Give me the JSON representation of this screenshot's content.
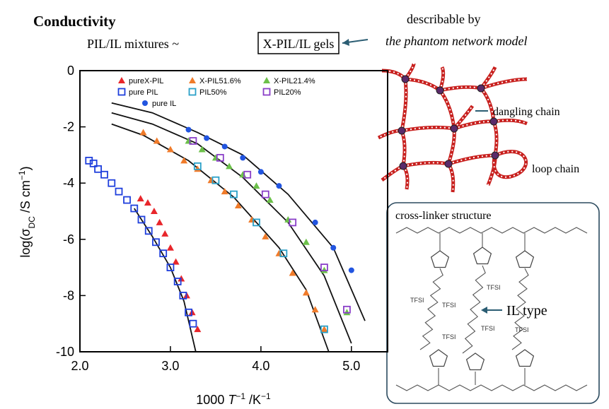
{
  "slide": {
    "title": "Conductivity",
    "mixtures": "PIL/IL mixtures ~",
    "gels": "X-PIL/IL gels",
    "describable": "describable by",
    "model": "the phantom network model"
  },
  "network": {
    "dangling": "dangling chain",
    "loop": "loop chain"
  },
  "structure": {
    "title": "cross-linker structure",
    "il_type": "IL type",
    "anions": [
      "TFSI",
      "TFSI",
      "TFSI",
      "TFSI",
      "TFSI",
      "TFSI"
    ]
  },
  "chart_data": {
    "type": "scatter",
    "x_label": [
      "1000 ",
      "T",
      "−1",
      " /K",
      "−1"
    ],
    "y_label": [
      "log(σ",
      "DC",
      " /S cm",
      "−1",
      ")"
    ],
    "xlim": [
      2.0,
      5.4
    ],
    "ylim": [
      -10,
      0
    ],
    "xticks": [
      {
        "value": 2,
        "label": "2.0"
      },
      {
        "value": 3,
        "label": "3.0"
      },
      {
        "value": 4,
        "label": "4.0"
      },
      {
        "value": 5,
        "label": "5.0"
      }
    ],
    "yticks": [
      0,
      -2,
      -4,
      -6,
      -8,
      -10
    ],
    "series": [
      {
        "name": "pureX-PIL",
        "color": "#e8262b",
        "marker": "triangle",
        "x": [
          2.67,
          2.75,
          2.82,
          2.88,
          2.94,
          3.0,
          3.06,
          3.12,
          3.18,
          3.24,
          3.3
        ],
        "values": [
          -4.55,
          -4.7,
          -5.0,
          -5.4,
          -5.8,
          -6.3,
          -6.8,
          -7.4,
          -8.0,
          -8.6,
          -9.2
        ]
      },
      {
        "name": "X-PIL51.6%",
        "color": "#f07b2a",
        "marker": "triangle",
        "x": [
          2.7,
          2.85,
          3.0,
          3.15,
          3.3,
          3.45,
          3.6,
          3.75,
          3.9,
          4.05,
          4.2,
          4.35,
          4.5,
          4.6,
          4.7
        ],
        "values": [
          -2.2,
          -2.5,
          -2.8,
          -3.2,
          -3.5,
          -3.9,
          -4.3,
          -4.8,
          -5.3,
          -5.9,
          -6.5,
          -7.2,
          -7.9,
          -8.5,
          -9.2
        ]
      },
      {
        "name": "X-PIL21.4%",
        "color": "#6cc04a",
        "marker": "triangle",
        "x": [
          3.2,
          3.35,
          3.5,
          3.65,
          3.8,
          3.95,
          4.1,
          4.3,
          4.5,
          4.7,
          4.95
        ],
        "values": [
          -2.5,
          -2.8,
          -3.1,
          -3.4,
          -3.7,
          -4.1,
          -4.6,
          -5.3,
          -6.1,
          -7.1,
          -8.6
        ]
      },
      {
        "name": "pure PIL",
        "color": "#1f3fdc",
        "marker": "square",
        "x": [
          2.1,
          2.15,
          2.2,
          2.27,
          2.35,
          2.43,
          2.52,
          2.6,
          2.68,
          2.76,
          2.84,
          2.92,
          3.0,
          3.08,
          3.14,
          3.2,
          3.25
        ],
        "values": [
          -3.2,
          -3.3,
          -3.5,
          -3.7,
          -4.0,
          -4.3,
          -4.6,
          -4.9,
          -5.3,
          -5.7,
          -6.1,
          -6.5,
          -7.0,
          -7.5,
          -8.0,
          -8.6,
          -9.0
        ]
      },
      {
        "name": "PIL50%",
        "color": "#2aa0c8",
        "marker": "square",
        "x": [
          3.3,
          3.5,
          3.7,
          3.95,
          4.25,
          4.7
        ],
        "values": [
          -3.4,
          -3.9,
          -4.4,
          -5.4,
          -6.5,
          -9.2
        ]
      },
      {
        "name": "PIL20%",
        "color": "#8a3fc8",
        "marker": "square",
        "x": [
          3.25,
          3.55,
          3.85,
          4.05,
          4.35,
          4.7,
          4.95
        ],
        "values": [
          -2.5,
          -3.1,
          -3.7,
          -4.4,
          -5.4,
          -7.0,
          -8.5
        ]
      },
      {
        "name": "pure IL",
        "color": "#2255e0",
        "marker": "circle",
        "x": [
          3.2,
          3.4,
          3.6,
          3.8,
          4.0,
          4.2,
          4.6,
          4.8,
          5.0
        ],
        "values": [
          -2.1,
          -2.4,
          -2.7,
          -3.1,
          -3.6,
          -4.1,
          -5.4,
          -6.3,
          -7.1
        ]
      }
    ],
    "curves": [
      {
        "color": "#111111",
        "x": [
          2.6,
          2.8,
          3.0,
          3.15,
          3.28
        ],
        "values": [
          -4.9,
          -5.9,
          -7.0,
          -8.2,
          -10
        ]
      },
      {
        "color": "#111111",
        "x": [
          2.35,
          2.7,
          3.2,
          3.7,
          4.2,
          4.5,
          4.75
        ],
        "values": [
          -1.9,
          -2.3,
          -3.2,
          -4.5,
          -6.3,
          -7.8,
          -10
        ]
      },
      {
        "color": "#111111",
        "x": [
          2.35,
          2.8,
          3.3,
          3.8,
          4.3,
          4.7,
          5.0
        ],
        "values": [
          -1.5,
          -1.9,
          -2.6,
          -3.8,
          -5.4,
          -7.3,
          -9.7
        ]
      },
      {
        "color": "#111111",
        "x": [
          2.35,
          2.8,
          3.3,
          3.8,
          4.3,
          4.8,
          5.15
        ],
        "values": [
          -1.15,
          -1.5,
          -2.2,
          -3.0,
          -4.4,
          -6.3,
          -8.9
        ]
      }
    ]
  }
}
